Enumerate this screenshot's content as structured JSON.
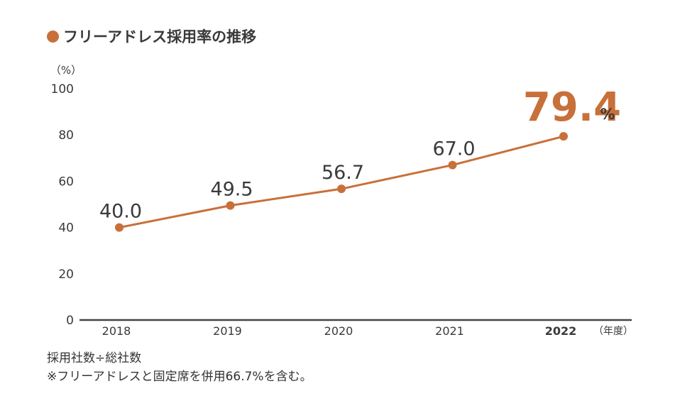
{
  "title": "フリーアドレス採用率の推移",
  "colors": {
    "accent": "#c8703a",
    "axis": "#444444",
    "text": "#3a3a3a"
  },
  "chart_data": {
    "type": "line",
    "title": "フリーアドレス採用率の推移",
    "xlabel": "（年度）",
    "ylabel": "（%）",
    "ylim": [
      0,
      100
    ],
    "yticks": [
      0,
      20,
      40,
      60,
      80,
      100
    ],
    "categories": [
      "2018",
      "2019",
      "2020",
      "2021",
      "2022"
    ],
    "values": [
      40.0,
      49.5,
      56.7,
      67.0,
      79.4
    ],
    "value_labels": [
      "40.0",
      "49.5",
      "56.7",
      "67.0",
      "79.4"
    ],
    "highlight_unit": "%",
    "grid": false,
    "legend": "none"
  },
  "notes": [
    "採用社数÷総社数",
    "※フリーアドレスと固定席を併用66.7%を含む。"
  ]
}
